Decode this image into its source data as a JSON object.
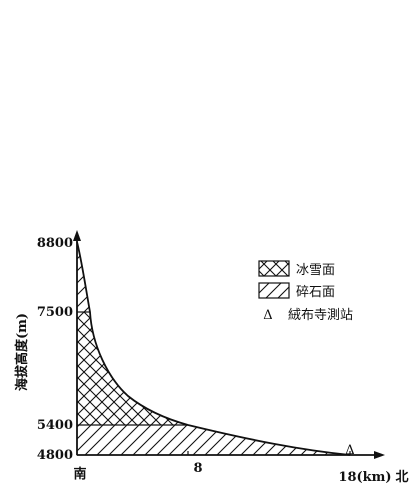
{
  "figure": {
    "y_axis": {
      "label": "海拔高度(m)",
      "ticks": [
        "8800",
        "7500",
        "5400",
        "4800"
      ]
    },
    "x_axis": {
      "start_label": "南",
      "mid_tick": "8",
      "end_label": "18(km)",
      "north_label": "北"
    },
    "legend": {
      "ice_snow": "冰雪面",
      "debris": "碎石面",
      "station_symbol": "Δ",
      "station": "絨布寺測站"
    }
  }
}
